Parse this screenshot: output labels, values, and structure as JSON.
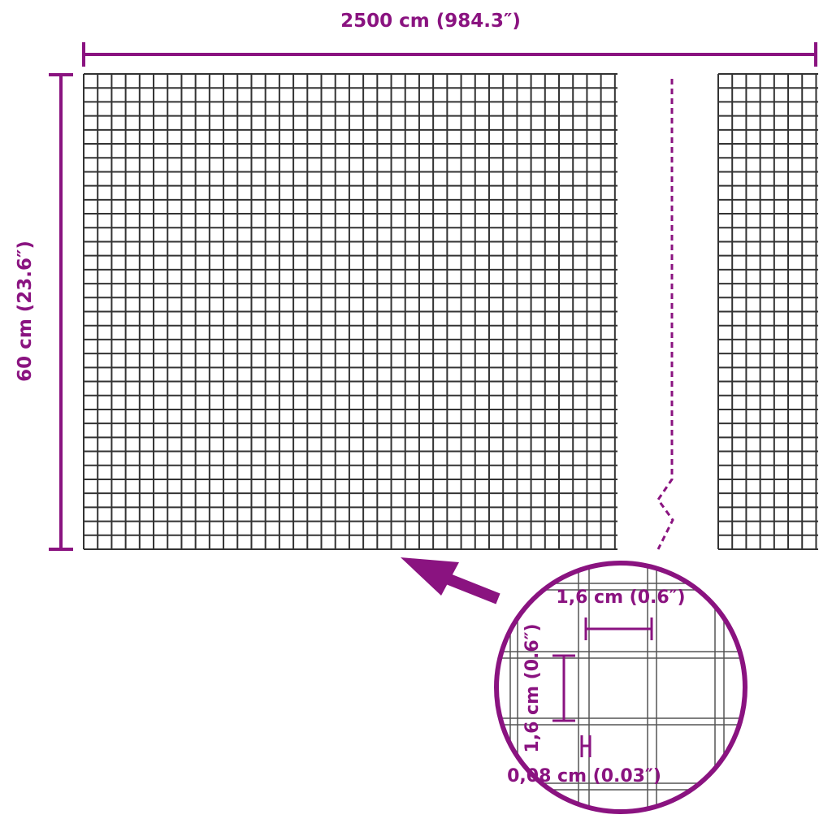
{
  "dimensions": {
    "width_label": "2500 cm (984.3″)",
    "height_label": "60 cm (23.6″)",
    "mesh_width_label": "1,6 cm (0.6″)",
    "mesh_height_label": "1,6 cm (0.6″)",
    "wire_thickness_label": "0,08 cm (0.03″)"
  },
  "colors": {
    "accent": "#8a1380",
    "wire": "#333333"
  },
  "icons": {
    "pointer": "arrow-icon",
    "magnifier": "zoom-circle-icon"
  }
}
